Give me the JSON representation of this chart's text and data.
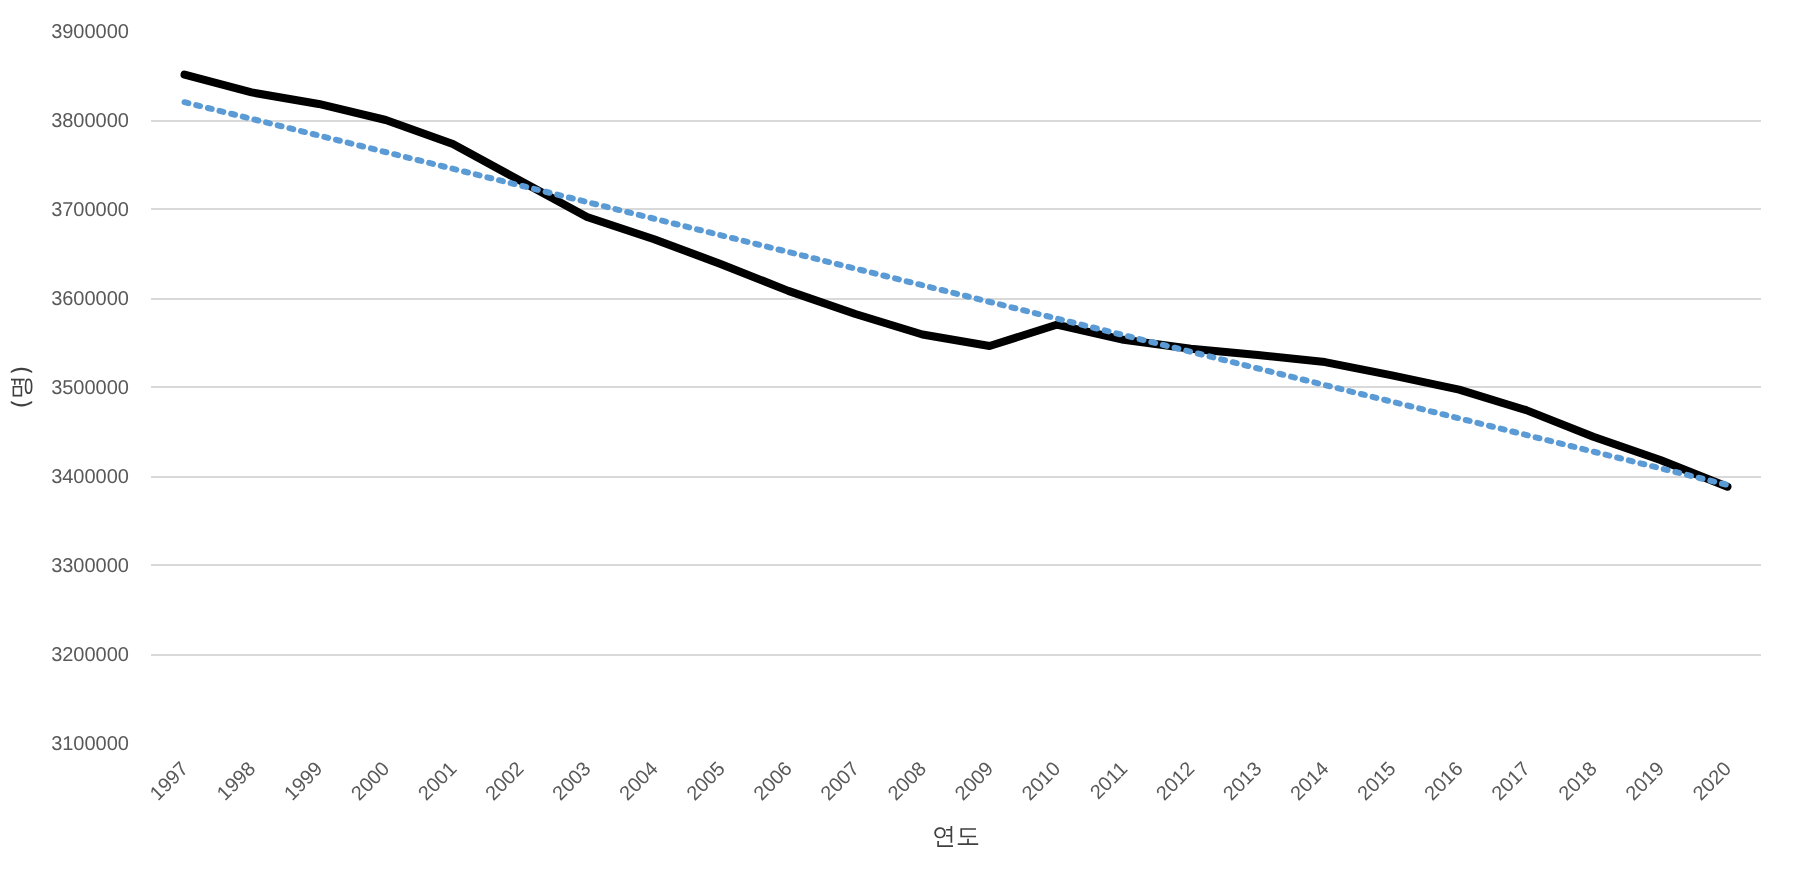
{
  "chart_data": {
    "type": "line",
    "xlabel": "연도",
    "ylabel": "(명)",
    "x": [
      1997,
      1998,
      1999,
      2000,
      2001,
      2002,
      2003,
      2004,
      2005,
      2006,
      2007,
      2008,
      2009,
      2010,
      2011,
      2012,
      2013,
      2014,
      2015,
      2016,
      2017,
      2018,
      2019,
      2020
    ],
    "series": [
      {
        "color": "#000000",
        "line_style": "solid",
        "values": [
          3851000,
          3831000,
          3818000,
          3800000,
          3773000,
          3732000,
          3691000,
          3666000,
          3638000,
          3608000,
          3582000,
          3559000,
          3546000,
          3570000,
          3553000,
          3543000,
          3536000,
          3528000,
          3513000,
          3497000,
          3474000,
          3444000,
          3418000,
          3388000
        ]
      },
      {
        "color": "#5b9bd5",
        "line_style": "dotted",
        "x": [
          1997,
          2020
        ],
        "values": [
          3820000,
          3390000
        ]
      }
    ],
    "xlim": [
      1996.5,
      2020.5
    ],
    "xticks": [
      1997,
      1998,
      1999,
      2000,
      2001,
      2002,
      2003,
      2004,
      2005,
      2006,
      2007,
      2008,
      2009,
      2010,
      2011,
      2012,
      2013,
      2014,
      2015,
      2016,
      2017,
      2018,
      2019,
      2020
    ],
    "ylim": [
      3100000,
      3900000
    ],
    "yticks": [
      3100000,
      3200000,
      3300000,
      3400000,
      3500000,
      3600000,
      3700000,
      3800000,
      3900000
    ],
    "grid": "y",
    "marker": "none"
  }
}
